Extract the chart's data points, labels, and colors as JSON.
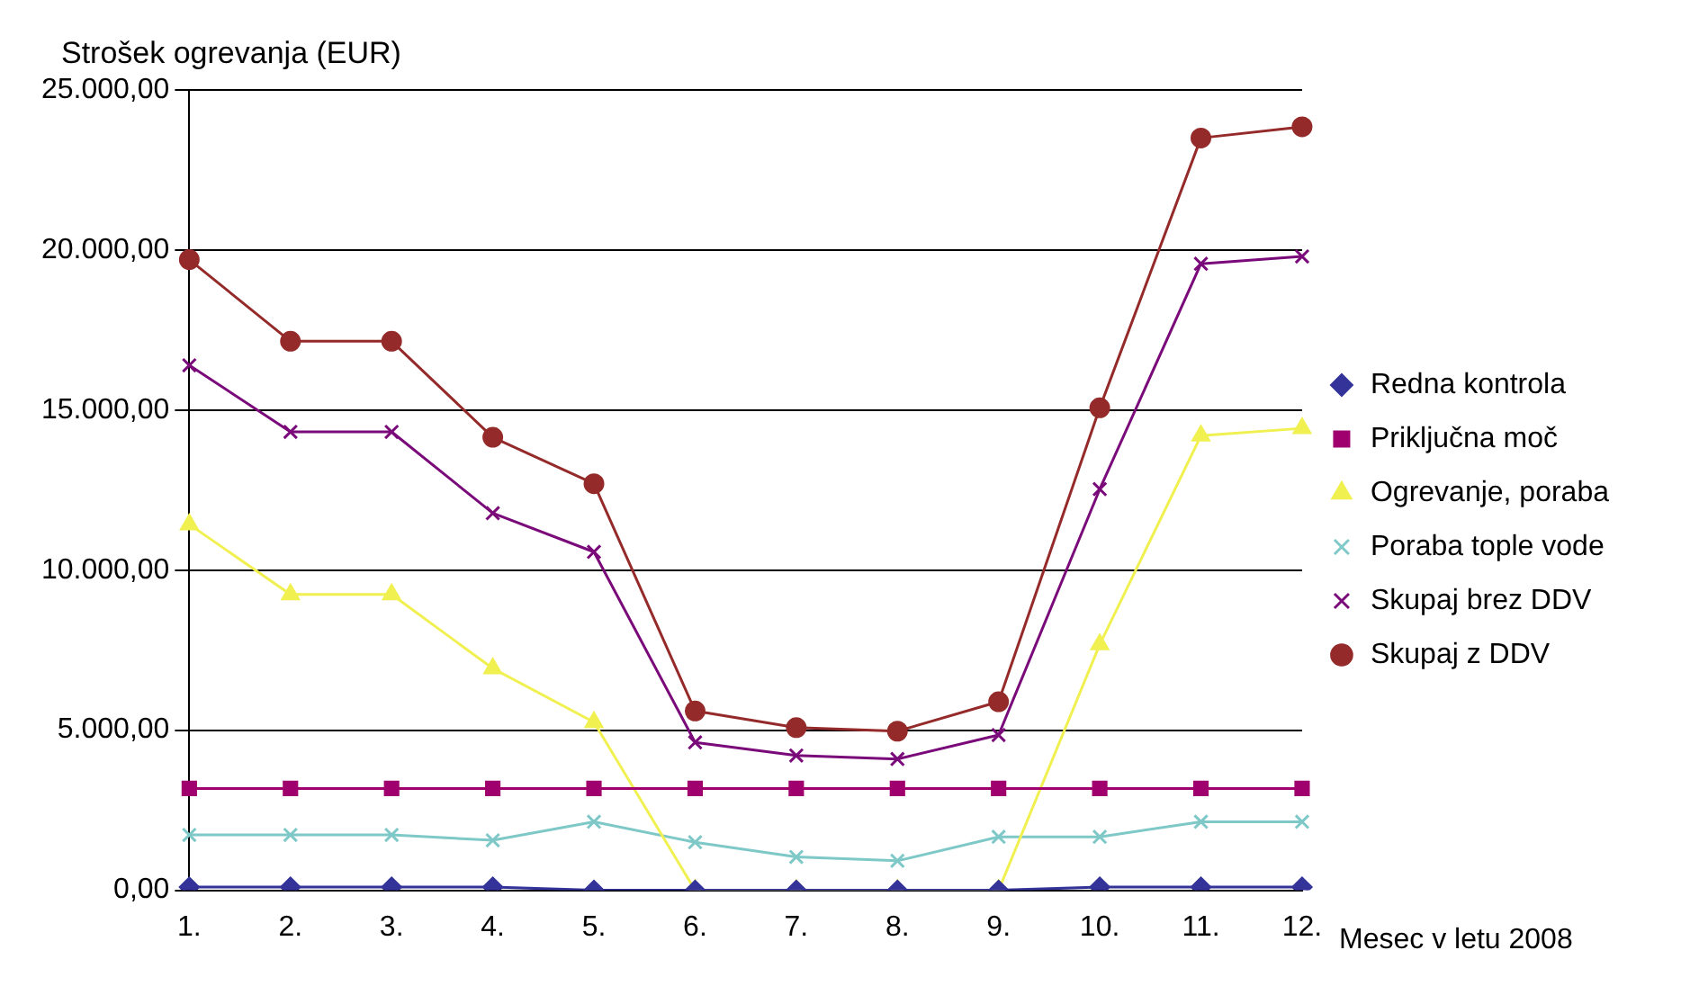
{
  "chart_data": {
    "type": "line",
    "ylabel": "Strošek ogrevanja (EUR)",
    "xlabel": "Mesec v letu 2008",
    "categories": [
      "1.",
      "2.",
      "3.",
      "4.",
      "5.",
      "6.",
      "7.",
      "8.",
      "9.",
      "10.",
      "11.",
      "12."
    ],
    "ylim": [
      0,
      25000
    ],
    "yticks": [
      {
        "value": 0,
        "label": "0,00"
      },
      {
        "value": 5000,
        "label": "5.000,00"
      },
      {
        "value": 10000,
        "label": "10.000,00"
      },
      {
        "value": 15000,
        "label": "15.000,00"
      },
      {
        "value": 20000,
        "label": "20.000,00"
      },
      {
        "value": 25000,
        "label": "25.000,00"
      }
    ],
    "grid": "y",
    "legend": "right",
    "series": [
      {
        "name": "Redna kontrola",
        "color": "#333399",
        "marker": "diamond",
        "values": [
          100,
          100,
          100,
          100,
          0,
          0,
          0,
          0,
          0,
          100,
          100,
          100
        ]
      },
      {
        "name": "Priključna moč",
        "color": "#a0006e",
        "marker": "square",
        "values": [
          3180,
          3180,
          3180,
          3180,
          3180,
          3180,
          3180,
          3180,
          3180,
          3180,
          3180,
          3180
        ]
      },
      {
        "name": "Ogrevanje, poraba",
        "color": "#f0f050",
        "marker": "triangle",
        "values": [
          11430,
          9240,
          9240,
          6930,
          5250,
          0,
          0,
          0,
          0,
          7680,
          14200,
          14430
        ]
      },
      {
        "name": "Poraba tople vode",
        "color": "#7fc8c8",
        "marker": "cross",
        "values": [
          1730,
          1730,
          1730,
          1560,
          2140,
          1500,
          1040,
          920,
          1670,
          1670,
          2140,
          2140
        ]
      },
      {
        "name": "Skupaj brez DDV",
        "color": "#7a0a7a",
        "marker": "cross",
        "values": [
          16400,
          14320,
          14320,
          11780,
          10570,
          4620,
          4210,
          4100,
          4850,
          12530,
          19570,
          19800
        ]
      },
      {
        "name": "Skupaj z DDV",
        "color": "#952a2a",
        "marker": "circle",
        "values": [
          19700,
          17150,
          17150,
          14150,
          12700,
          5600,
          5080,
          4970,
          5890,
          15070,
          23500,
          23850
        ]
      }
    ]
  }
}
